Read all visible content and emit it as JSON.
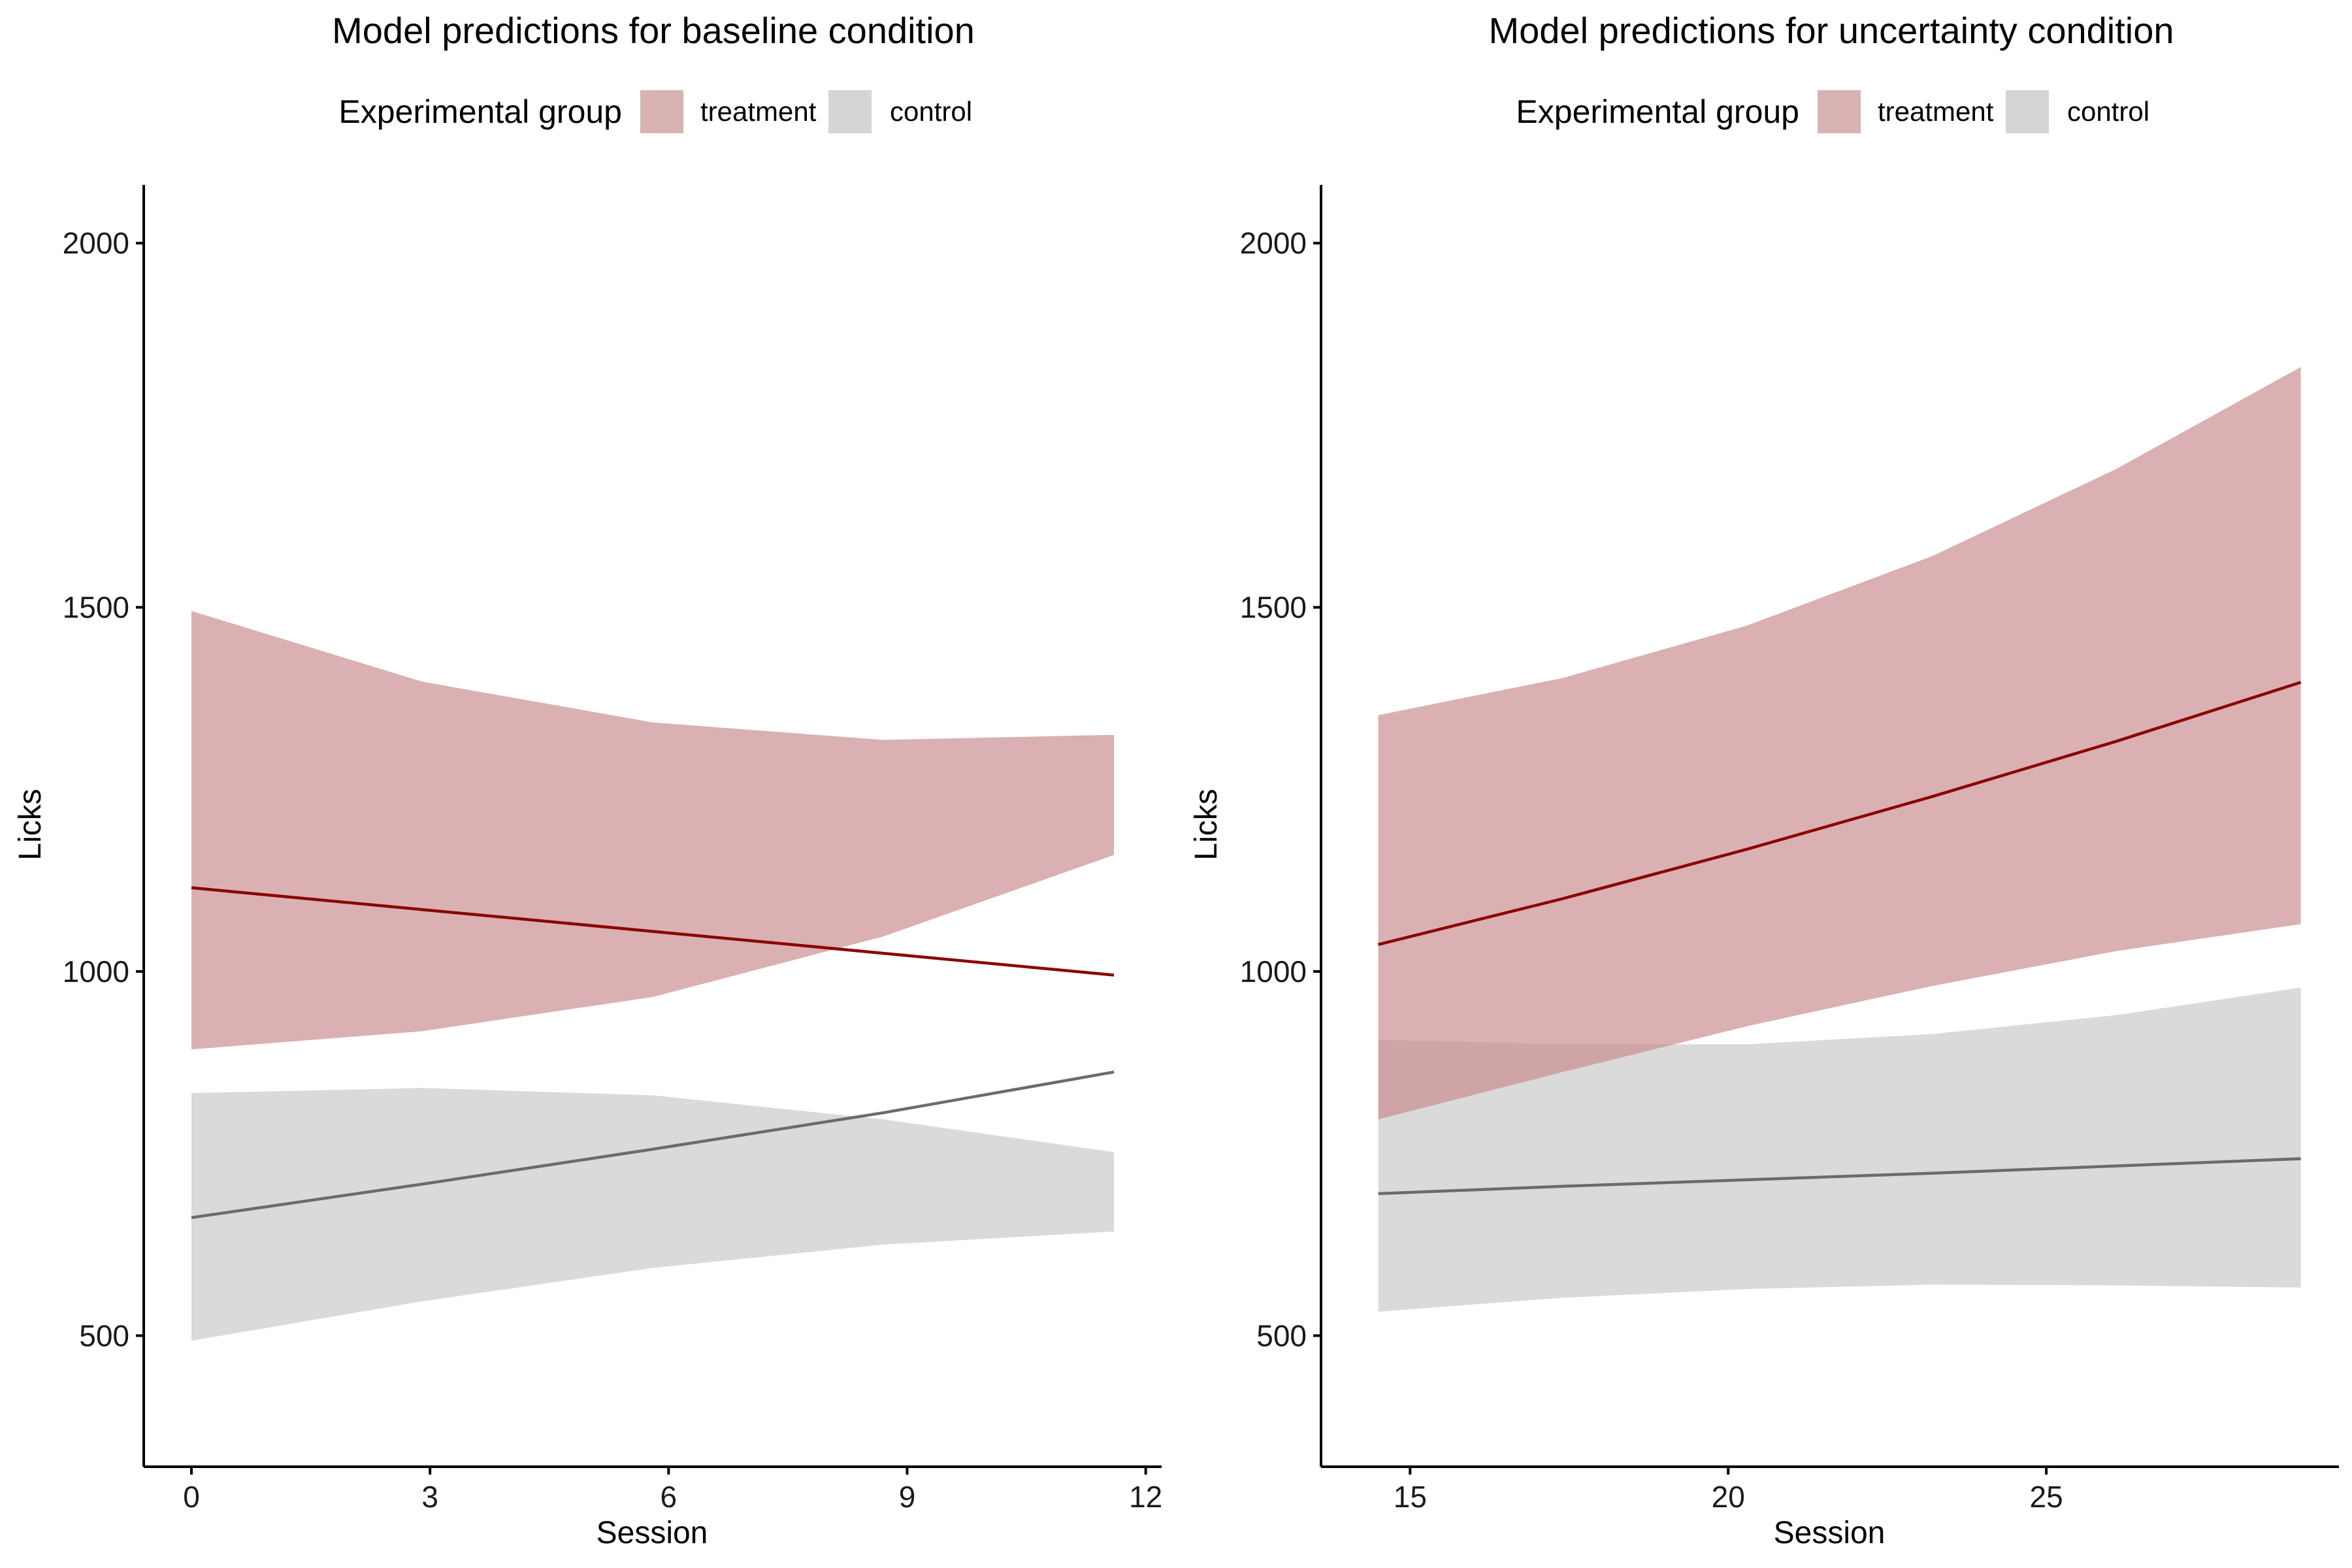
{
  "chart_data": [
    {
      "type": "area",
      "title": "Model predictions for baseline condition",
      "xlabel": "Session",
      "ylabel": "Licks",
      "legend": {
        "title": "Experimental group",
        "position": "top",
        "entries": [
          "treatment",
          "control"
        ]
      },
      "xlim": [
        -0.6,
        12.2
      ],
      "ylim": [
        320,
        2080
      ],
      "xticks": [
        0,
        3,
        6,
        9,
        12
      ],
      "yticks": [
        500,
        1000,
        1500,
        2000
      ],
      "grid": false,
      "series": [
        {
          "name": "treatment",
          "color": "#8b0000",
          "ribbon_color": "#c98a8e",
          "x": [
            0,
            2.9,
            5.8,
            8.7,
            11.6
          ],
          "fit": [
            1115,
            1085,
            1055,
            1025,
            995
          ],
          "lower": [
            893,
            918,
            965,
            1048,
            1160
          ],
          "upper": [
            1495,
            1398,
            1342,
            1318,
            1325
          ]
        },
        {
          "name": "control",
          "color": "#6b6b6b",
          "ribbon_color": "#c9c9c9",
          "x": [
            0,
            2.9,
            5.8,
            8.7,
            11.6
          ],
          "fit": [
            662,
            708,
            756,
            806,
            862
          ],
          "lower": [
            493,
            547,
            593,
            625,
            643
          ],
          "upper": [
            833,
            840,
            830,
            797,
            752
          ]
        }
      ]
    },
    {
      "type": "area",
      "title": "Model predictions for uncertainty condition",
      "xlabel": "Session",
      "ylabel": "Licks",
      "legend": {
        "title": "Experimental group",
        "position": "top",
        "entries": [
          "treatment",
          "control"
        ]
      },
      "xlim": [
        13.6,
        29.6
      ],
      "ylim": [
        320,
        2080
      ],
      "xticks": [
        15,
        20,
        25
      ],
      "yticks": [
        500,
        1000,
        1500,
        2000
      ],
      "grid": false,
      "series": [
        {
          "name": "treatment",
          "color": "#8b0000",
          "ribbon_color": "#c98a8e",
          "x": [
            14.5,
            17.4,
            20.3,
            23.2,
            26.1,
            29.0
          ],
          "fit": [
            1037,
            1100,
            1168,
            1240,
            1316,
            1397
          ],
          "lower": [
            797,
            862,
            925,
            980,
            1028,
            1065
          ],
          "upper": [
            1352,
            1403,
            1475,
            1570,
            1690,
            1830
          ]
        },
        {
          "name": "control",
          "color": "#6b6b6b",
          "ribbon_color": "#c9c9c9",
          "x": [
            14.5,
            17.4,
            20.3,
            23.2,
            26.1,
            29.0
          ],
          "fit": [
            695,
            705,
            714,
            723,
            733,
            743
          ],
          "lower": [
            533,
            552,
            564,
            570,
            569,
            566
          ],
          "upper": [
            906,
            900,
            900,
            914,
            940,
            978
          ]
        }
      ]
    }
  ]
}
